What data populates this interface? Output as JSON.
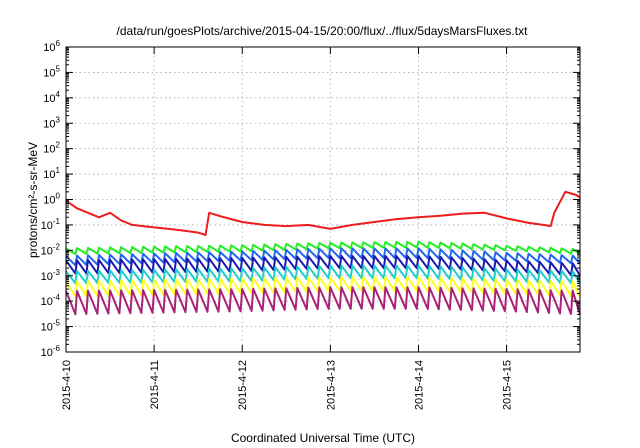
{
  "chart_data": {
    "type": "line",
    "title": "/data/run/goesPlots/archive/2015-04-15/20:00/flux/../flux/5daysMarsFluxes.txt",
    "xlabel": "Coordinated Universal Time (UTC)",
    "ylabel": "protons/cm²-s-sr-MeV",
    "y_scale": "log",
    "ylim": [
      1e-06,
      1000000.0
    ],
    "y_tick_exponents": [
      -6,
      -5,
      -4,
      -3,
      -2,
      -1,
      0,
      1,
      2,
      3,
      4,
      5,
      6
    ],
    "x_range": [
      "2015-04-10 00:00",
      "2015-04-15 20:00"
    ],
    "x_ticks": [
      "2015-4-10",
      "2015-4-11",
      "2015-4-12",
      "2015-4-13",
      "2015-4-14",
      "2015-4-15"
    ],
    "grid": true,
    "series": [
      {
        "color": "#ee1c1c",
        "x": [
          "2015-04-10 00:00",
          "2015-04-10 03:00",
          "2015-04-10 06:00",
          "2015-04-10 09:00",
          "2015-04-10 12:00",
          "2015-04-10 15:00",
          "2015-04-10 18:00",
          "2015-04-10 21:00",
          "2015-04-11 00:00",
          "2015-04-11 04:00",
          "2015-04-11 08:00",
          "2015-04-11 12:00",
          "2015-04-11 14:00",
          "2015-04-11 15:00",
          "2015-04-11 18:00",
          "2015-04-11 21:00",
          "2015-04-12 00:00",
          "2015-04-12 06:00",
          "2015-04-12 12:00",
          "2015-04-12 18:00",
          "2015-04-13 00:00",
          "2015-04-13 06:00",
          "2015-04-13 12:00",
          "2015-04-13 18:00",
          "2015-04-14 00:00",
          "2015-04-14 06:00",
          "2015-04-14 12:00",
          "2015-04-14 18:00",
          "2015-04-15 00:00",
          "2015-04-15 06:00",
          "2015-04-15 10:00",
          "2015-04-15 12:00",
          "2015-04-15 13:00",
          "2015-04-15 16:00",
          "2015-04-15 19:00",
          "2015-04-15 20:00"
        ],
        "y": [
          0.9,
          0.45,
          0.3,
          0.2,
          0.3,
          0.15,
          0.1,
          0.09,
          0.08,
          0.07,
          0.06,
          0.05,
          0.04,
          0.3,
          0.22,
          0.17,
          0.13,
          0.1,
          0.09,
          0.1,
          0.07,
          0.1,
          0.13,
          0.17,
          0.2,
          0.23,
          0.28,
          0.3,
          0.18,
          0.12,
          0.1,
          0.09,
          0.3,
          2.0,
          1.5,
          1.2
        ]
      },
      {
        "color": "#22ee22",
        "x": [
          "2015-04-10 00:00",
          "2015-04-12 00:00",
          "2015-04-13 00:00",
          "2015-04-14 00:00",
          "2015-04-15 00:00",
          "2015-04-15 20:00"
        ],
        "y_peak": [
          0.012,
          0.016,
          0.02,
          0.022,
          0.015,
          0.011
        ],
        "y_trough": [
          0.007,
          0.009,
          0.012,
          0.013,
          0.01,
          0.007
        ]
      },
      {
        "color": "#2266ee",
        "x": [
          "2015-04-10 00:00",
          "2015-04-12 00:00",
          "2015-04-13 00:00",
          "2015-04-14 00:00",
          "2015-04-15 00:00",
          "2015-04-15 20:00"
        ],
        "y_peak": [
          0.006,
          0.009,
          0.012,
          0.012,
          0.008,
          0.006
        ],
        "y_trough": [
          0.0025,
          0.004,
          0.005,
          0.005,
          0.004,
          0.003
        ]
      },
      {
        "color": "#1a1ab0",
        "x": [
          "2015-04-10 00:00",
          "2015-04-12 00:00",
          "2015-04-13 00:00",
          "2015-04-14 00:00",
          "2015-04-15 00:00",
          "2015-04-15 20:00"
        ],
        "y_peak": [
          0.004,
          0.005,
          0.006,
          0.006,
          0.004,
          0.003
        ],
        "y_trough": [
          0.0012,
          0.0015,
          0.002,
          0.002,
          0.0015,
          0.001
        ]
      },
      {
        "color": "#22cccc",
        "x": [
          "2015-04-10 00:00",
          "2015-04-12 00:00",
          "2015-04-13 00:00",
          "2015-04-14 00:00",
          "2015-04-15 00:00",
          "2015-04-15 20:00"
        ],
        "y_peak": [
          0.0015,
          0.002,
          0.0025,
          0.0025,
          0.0018,
          0.0015
        ],
        "y_trough": [
          0.0005,
          0.0006,
          0.0008,
          0.0008,
          0.0006,
          0.0005
        ]
      },
      {
        "color": "#ffff22",
        "x": [
          "2015-04-10 00:00",
          "2015-04-12 00:00",
          "2015-04-13 00:00",
          "2015-04-14 00:00",
          "2015-04-15 00:00",
          "2015-04-15 20:00"
        ],
        "y_peak": [
          0.0006,
          0.0008,
          0.0009,
          0.0009,
          0.0007,
          0.0006
        ],
        "y_trough": [
          0.00015,
          0.0002,
          0.00025,
          0.00025,
          0.0002,
          0.00015
        ]
      },
      {
        "color": "#aa2277",
        "x": [
          "2015-04-10 00:00",
          "2015-04-12 00:00",
          "2015-04-13 00:00",
          "2015-04-14 00:00",
          "2015-04-15 00:00",
          "2015-04-15 20:00"
        ],
        "y_peak": [
          0.00025,
          0.0003,
          0.00035,
          0.00035,
          0.0003,
          0.00025
        ],
        "y_trough": [
          3e-05,
          4e-05,
          5e-05,
          5e-05,
          4e-05,
          3e-05
        ]
      }
    ],
    "oscillation_period_hours": 3
  }
}
